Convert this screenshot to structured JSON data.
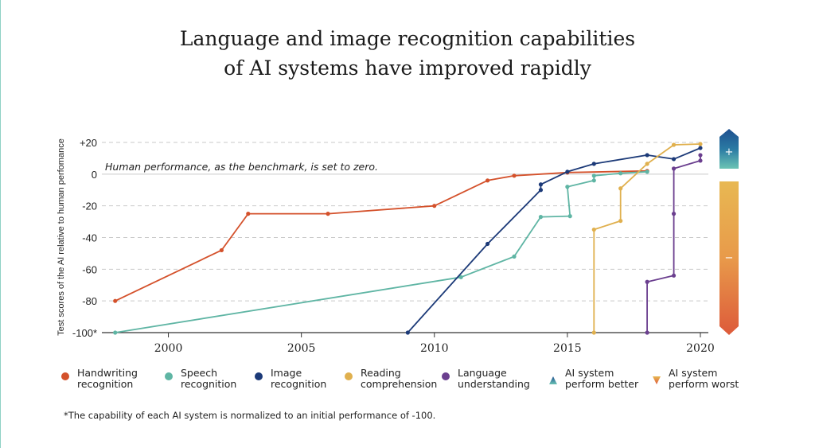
{
  "title_lines": [
    "Language and image recognition capabilities",
    "of AI systems have improved rapidly"
  ],
  "footnote": "*The capability of each AI system is normalized to an initial performance of -100.",
  "legend": [
    {
      "label": "Handwriting\nrecognition",
      "color": "#d4512b",
      "shape": "dot"
    },
    {
      "label": "Speech\nrecognition",
      "color": "#5fb5a4",
      "shape": "dot"
    },
    {
      "label": "Image\nrecognition",
      "color": "#1c3a78",
      "shape": "dot"
    },
    {
      "label": "Reading\ncomprehension",
      "color": "#e0b04e",
      "shape": "dot"
    },
    {
      "label": "Language\nunderstanding",
      "color": "#6b3f8f",
      "shape": "dot"
    },
    {
      "label": "AI system\nperform better",
      "color": "#2a6f97",
      "shape": "triangle-up"
    },
    {
      "label": "AI system\nperform worst",
      "color": "#e0b04e",
      "shape": "triangle-down"
    }
  ],
  "chart_data": {
    "type": "line",
    "title": "Language and image recognition capabilities of AI systems have improved rapidly",
    "ylabel": "Test scores of the AI relative to human perfomance",
    "xlabel": "",
    "xlim": [
      1997.5,
      2020.3
    ],
    "ylim": [
      -100,
      20
    ],
    "x_ticks": [
      2000,
      2005,
      2010,
      2015,
      2020
    ],
    "y_ticks": [
      {
        "value": 20,
        "label": "+20"
      },
      {
        "value": 0,
        "label": "0"
      },
      {
        "value": -20,
        "label": "-20"
      },
      {
        "value": -40,
        "label": "-40"
      },
      {
        "value": -60,
        "label": "-60"
      },
      {
        "value": -80,
        "label": "-80"
      },
      {
        "value": -100,
        "label": "-100*"
      }
    ],
    "annotation": "Human performance, as the benchmark, is set to zero.",
    "indicator_labels": {
      "better": "+",
      "worse": "−"
    },
    "series": [
      {
        "name": "Handwriting recognition",
        "color": "#d4512b",
        "x": [
          1998,
          2002,
          2003,
          2006,
          2010,
          2012,
          2013,
          2015,
          2018
        ],
        "y": [
          -80,
          -48,
          -25,
          -25,
          -20,
          -4,
          -1,
          1,
          2
        ]
      },
      {
        "name": "Speech recognition",
        "color": "#5fb5a4",
        "x": [
          1998,
          2011,
          2013,
          2014,
          2015.1,
          2015,
          2016,
          2016,
          2017,
          2018
        ],
        "y": [
          -100,
          -65,
          -52,
          -27,
          -26.5,
          -8,
          -4,
          -1,
          0.5,
          1.5
        ]
      },
      {
        "name": "Image recognition",
        "color": "#1c3a78",
        "x": [
          2009,
          2012,
          2014,
          2014,
          2015,
          2016,
          2018,
          2019,
          2020
        ],
        "y": [
          -100,
          -44,
          -10,
          -6.5,
          1.5,
          6.5,
          12,
          9.5,
          16.5
        ]
      },
      {
        "name": "Reading comprehension",
        "color": "#e0b04e",
        "x": [
          2016,
          2016,
          2017,
          2017,
          2018,
          2019,
          2020
        ],
        "y": [
          -100,
          -35,
          -29.5,
          -9,
          6.5,
          18.5,
          19
        ]
      },
      {
        "name": "Language understanding",
        "color": "#6b3f8f",
        "x": [
          2018,
          2018,
          2019,
          2019,
          2019,
          2020,
          2020
        ],
        "y": [
          -100,
          -68,
          -64,
          -25,
          3.5,
          8.5,
          12
        ]
      }
    ]
  }
}
